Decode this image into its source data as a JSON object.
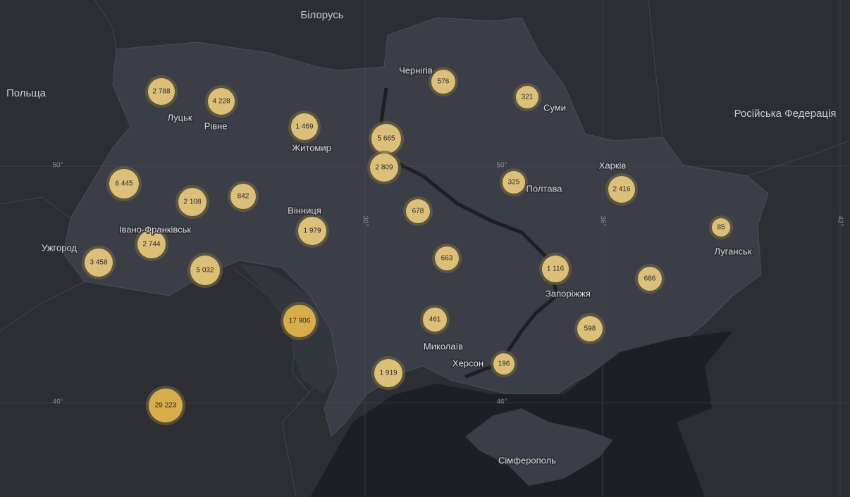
{
  "countries": [
    {
      "label": "Білорусь"
    },
    {
      "label": "Польща"
    },
    {
      "label": "Російська Федерація"
    }
  ],
  "cities": [
    {
      "label": "Луцьк"
    },
    {
      "label": "Рівне"
    },
    {
      "label": "Житомир"
    },
    {
      "label": "Чернігів"
    },
    {
      "label": "Суми"
    },
    {
      "label": "Харків"
    },
    {
      "label": "Полтава"
    },
    {
      "label": "Вінниця"
    },
    {
      "label": "Івано-Франківськ"
    },
    {
      "label": "Ужгород"
    },
    {
      "label": "Луганськ"
    },
    {
      "label": "Запоріжжя"
    },
    {
      "label": "Миколаїв"
    },
    {
      "label": "Херсон"
    },
    {
      "label": "Сімферополь"
    }
  ],
  "graticule": [
    {
      "label": "50°"
    },
    {
      "label": "50°"
    },
    {
      "label": "46°"
    },
    {
      "label": "46°"
    },
    {
      "label": "30°"
    },
    {
      "label": "36°"
    },
    {
      "label": "42°"
    }
  ],
  "clusters": [
    {
      "label": "2 788"
    },
    {
      "label": "4 228"
    },
    {
      "label": "1 469"
    },
    {
      "label": "5 665"
    },
    {
      "label": "576"
    },
    {
      "label": "321"
    },
    {
      "label": "2 809"
    },
    {
      "label": "6 445"
    },
    {
      "label": "2 108"
    },
    {
      "label": "842"
    },
    {
      "label": "325"
    },
    {
      "label": "2 416"
    },
    {
      "label": "678"
    },
    {
      "label": "1 979"
    },
    {
      "label": "2 744"
    },
    {
      "label": "85"
    },
    {
      "label": "3 458"
    },
    {
      "label": "5 032"
    },
    {
      "label": "663"
    },
    {
      "label": "1 116"
    },
    {
      "label": "686"
    },
    {
      "label": "17 906"
    },
    {
      "label": "461"
    },
    {
      "label": "598"
    },
    {
      "label": "1 919"
    },
    {
      "label": "196"
    },
    {
      "label": "29 223"
    }
  ]
}
